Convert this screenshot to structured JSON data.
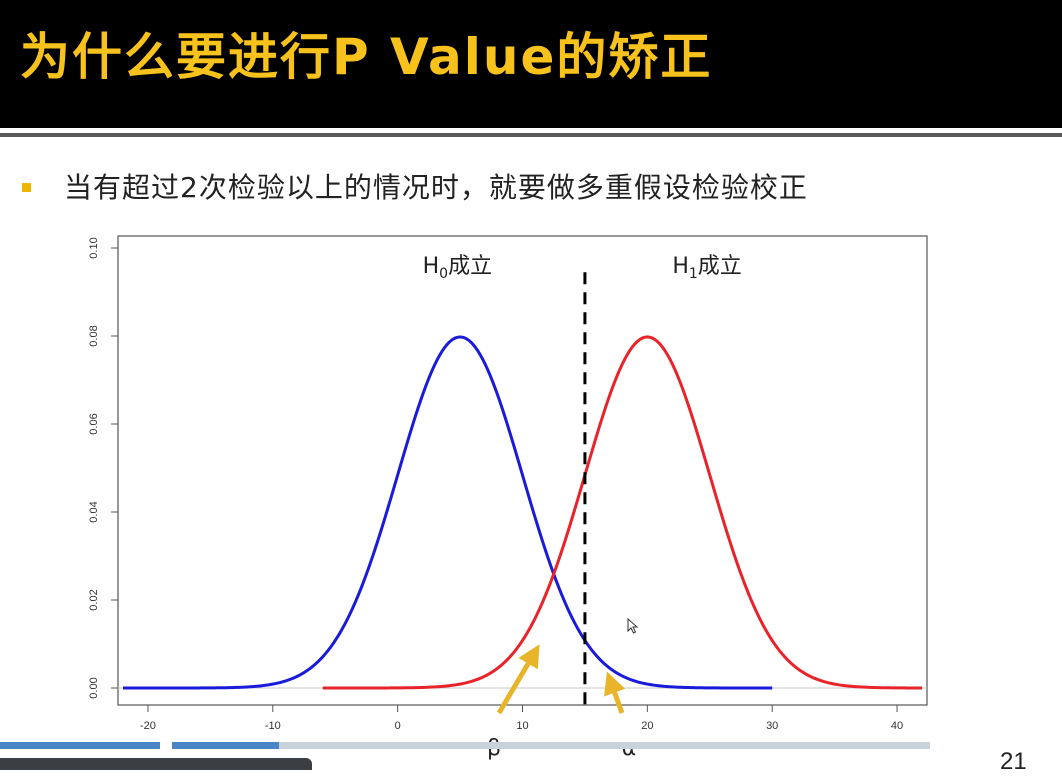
{
  "slide": {
    "title": "为什么要进行P Value的矫正",
    "bullet": "当有超过2次检验以上的情况时，就要做多重假设检验校正",
    "page_number": "21",
    "progress": 0.3
  },
  "colors": {
    "title": "#f7c21c",
    "bullet_marker": "#f2b600",
    "h0_curve": "#1a1adb",
    "h1_curve": "#e8232a",
    "arrow": "#e8b52a",
    "threshold": "#000000"
  },
  "chart_data": {
    "type": "line",
    "xlim": [
      -22,
      42
    ],
    "ylim": [
      0,
      0.1
    ],
    "x_ticks": [
      -20,
      -10,
      0,
      10,
      20,
      30,
      40
    ],
    "y_ticks": [
      0.0,
      0.02,
      0.04,
      0.06,
      0.08,
      0.1
    ],
    "y_tick_labels": [
      "0.00",
      "0.02",
      "0.04",
      "0.06",
      "0.08",
      "0.10"
    ],
    "series": [
      {
        "distribution": "normal",
        "mean": 5,
        "sd": 5,
        "x_range": [
          -22,
          30
        ],
        "color": "#1a1adb"
      },
      {
        "distribution": "normal",
        "mean": 20,
        "sd": 5,
        "x_range": [
          -6,
          42
        ],
        "color": "#e8232a"
      }
    ],
    "threshold_x": 15,
    "annotations": [
      {
        "text": "H",
        "subscript": "0",
        "suffix": "成立",
        "x": 2,
        "y": 0.097
      },
      {
        "text": "H",
        "subscript": "1",
        "suffix": "成立",
        "x": 22,
        "y": 0.097
      }
    ],
    "arrows": [
      {
        "label": "β",
        "points_to": [
          11.5,
          0.009
        ]
      },
      {
        "label": "α",
        "points_to": [
          17,
          0.002
        ]
      }
    ]
  }
}
